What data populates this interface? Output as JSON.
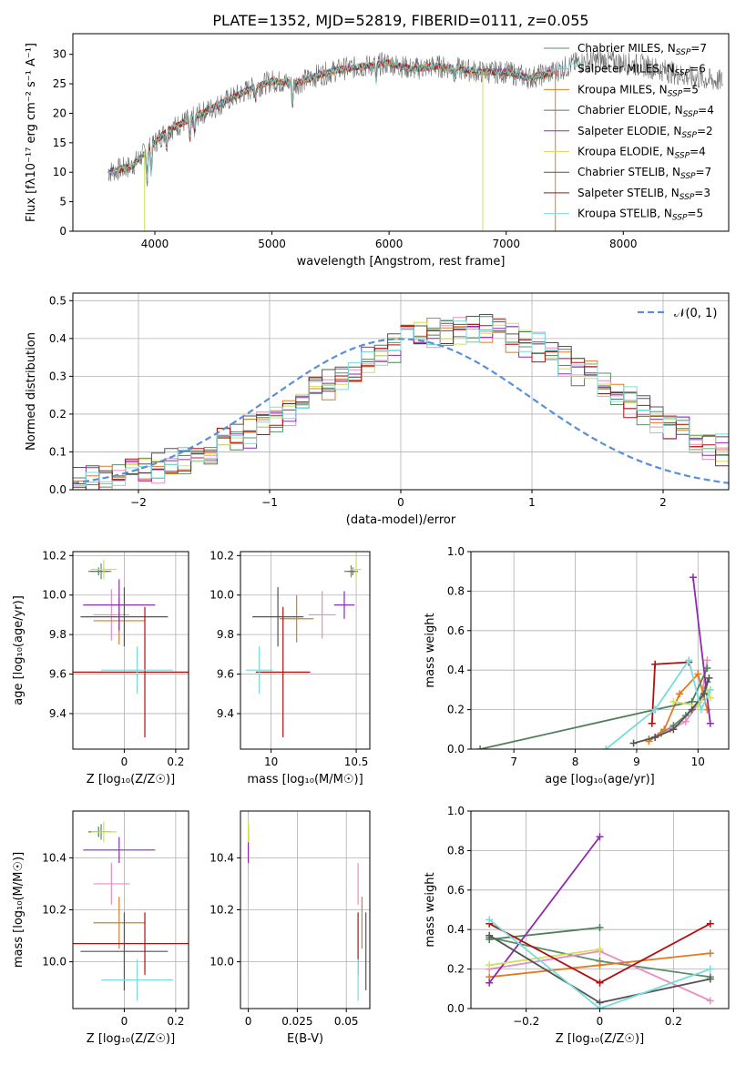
{
  "title": "PLATE=1352, MJD=52819, FIBERID=0111, z=0.055",
  "palette": [
    "#5b8f6a",
    "#e88dbf",
    "#e07b22",
    "#4f7f59",
    "#8e2bb0",
    "#cfe05a",
    "#555555",
    "#b01010",
    "#79dcdc"
  ],
  "labels": {
    "spec_x": "wavelength [Angstrom, rest frame]",
    "spec_y": "Flux [fλ10⁻¹⁷ erg cm⁻² s⁻¹ A⁻¹]",
    "res_x": "(data-model)/error",
    "res_y": "Normed distribution",
    "age_y": "age  [log₁₀(age/yr)]",
    "z_x": "Z [log₁₀(Z/Z☉)]",
    "mass_x": "mass [log₁₀(M/M☉)]",
    "mw_y": "mass weight",
    "age_x": "age  [log₁₀(age/yr)]",
    "mass_y": "mass [log₁₀(M/M☉)]",
    "ebv_x": "E(B-V)",
    "gauss_label": "𝒩(0, 1)"
  },
  "chart_data": [
    {
      "type": "line",
      "panel": "spectrum",
      "xlim": [
        3300,
        8900
      ],
      "ylim": [
        0,
        33.5
      ],
      "xticks": [
        4000,
        5000,
        6000,
        7000,
        8000
      ],
      "yticks": [
        0,
        5,
        10,
        15,
        20,
        25,
        30
      ],
      "legend_position": "top-right",
      "series": [
        {
          "name": "Chabrier MILES, N_SSP=7"
        },
        {
          "name": "Salpeter MILES, N_SSP=6"
        },
        {
          "name": "Kroupa MILES, N_SSP=5"
        },
        {
          "name": "Chabrier ELODIE, N_SSP=4"
        },
        {
          "name": "Salpeter ELODIE, N_SSP=2"
        },
        {
          "name": "Kroupa ELODIE, N_SSP=4"
        },
        {
          "name": "Chabrier STELIB, N_SSP=7"
        },
        {
          "name": "Salpeter STELIB, N_SSP=3"
        },
        {
          "name": "Kroupa STELIB, N_SSP=5"
        }
      ],
      "continuum": [
        [
          3600,
          10
        ],
        [
          3800,
          11
        ],
        [
          3950,
          14
        ],
        [
          4100,
          17
        ],
        [
          4250,
          18.5
        ],
        [
          4400,
          20
        ],
        [
          4600,
          22
        ],
        [
          4800,
          24
        ],
        [
          5000,
          25.5
        ],
        [
          5200,
          25
        ],
        [
          5400,
          26.5
        ],
        [
          5600,
          27.5
        ],
        [
          5800,
          28
        ],
        [
          6000,
          28.5
        ],
        [
          6200,
          27.5
        ],
        [
          6400,
          28
        ],
        [
          6600,
          27.5
        ],
        [
          6800,
          27
        ],
        [
          7000,
          27
        ],
        [
          7200,
          26
        ],
        [
          7400,
          27
        ],
        [
          7600,
          28.5
        ],
        [
          7800,
          29
        ],
        [
          8000,
          28.5
        ],
        [
          8200,
          28
        ],
        [
          8400,
          27
        ],
        [
          8600,
          26
        ],
        [
          8800,
          25.5
        ]
      ]
    },
    {
      "type": "bar",
      "panel": "residual-histogram",
      "xlim": [
        -2.5,
        2.5
      ],
      "ylim": [
        0,
        0.52
      ],
      "xticks": [
        -2,
        -1,
        0,
        1,
        2
      ],
      "yticks": [
        0.0,
        0.1,
        0.2,
        0.3,
        0.4,
        0.5
      ],
      "bin_width": 0.1,
      "density": [
        0.018,
        0.022,
        0.027,
        0.033,
        0.04,
        0.048,
        0.057,
        0.067,
        0.078,
        0.091,
        0.104,
        0.119,
        0.135,
        0.153,
        0.171,
        0.191,
        0.211,
        0.232,
        0.254,
        0.276,
        0.298,
        0.319,
        0.34,
        0.36,
        0.378,
        0.393,
        0.406,
        0.416,
        0.423,
        0.427,
        0.427,
        0.423,
        0.416,
        0.406,
        0.393,
        0.378,
        0.36,
        0.34,
        0.319,
        0.298,
        0.276,
        0.254,
        0.232,
        0.211,
        0.191,
        0.171,
        0.153,
        0.135,
        0.119,
        0.104
      ],
      "legend_position": "top-right"
    },
    {
      "type": "scatter",
      "panel": "age-vs-Z",
      "xlim": [
        -0.2,
        0.25
      ],
      "ylim": [
        9.22,
        10.22
      ],
      "xticks": [
        0.0,
        0.2
      ],
      "yticks": [
        9.4,
        9.6,
        9.8,
        10.0,
        10.2
      ],
      "points": [
        {
          "x": -0.09,
          "y": 10.12,
          "xerr": 0.04,
          "yerr": 0.04
        },
        {
          "x": -0.05,
          "y": 9.9,
          "xerr": 0.07,
          "yerr": 0.13
        },
        {
          "x": -0.02,
          "y": 9.87,
          "xerr": 0.1,
          "yerr": 0.12
        },
        {
          "x": -0.1,
          "y": 10.12,
          "xerr": 0.04,
          "yerr": 0.02
        },
        {
          "x": -0.02,
          "y": 9.95,
          "xerr": 0.14,
          "yerr": 0.13
        },
        {
          "x": -0.08,
          "y": 10.13,
          "xerr": 0.05,
          "yerr": 0.05
        },
        {
          "x": 0.0,
          "y": 9.89,
          "xerr": 0.17,
          "yerr": 0.15
        },
        {
          "x": 0.08,
          "y": 9.61,
          "xerr": 0.3,
          "yerr": 0.33
        },
        {
          "x": 0.05,
          "y": 9.62,
          "xerr": 0.14,
          "yerr": 0.12
        }
      ]
    },
    {
      "type": "scatter",
      "panel": "age-vs-mass",
      "xlim": [
        9.82,
        10.58
      ],
      "ylim": [
        9.22,
        10.22
      ],
      "xticks": [
        10.0,
        10.5
      ],
      "yticks": [
        9.4,
        9.6,
        9.8,
        10.0,
        10.2
      ],
      "points": [
        {
          "x": 10.47,
          "y": 10.12,
          "xerr": 0.04,
          "yerr": 0.03
        },
        {
          "x": 10.3,
          "y": 9.9,
          "xerr": 0.08,
          "yerr": 0.12
        },
        {
          "x": 10.15,
          "y": 9.88,
          "xerr": 0.1,
          "yerr": 0.12
        },
        {
          "x": 10.48,
          "y": 10.12,
          "xerr": 0.03,
          "yerr": 0.02
        },
        {
          "x": 10.43,
          "y": 9.95,
          "xerr": 0.06,
          "yerr": 0.07
        },
        {
          "x": 10.5,
          "y": 10.13,
          "xerr": 0.03,
          "yerr": 0.06
        },
        {
          "x": 10.04,
          "y": 9.89,
          "xerr": 0.15,
          "yerr": 0.15
        },
        {
          "x": 10.07,
          "y": 9.61,
          "xerr": 0.16,
          "yerr": 0.33
        },
        {
          "x": 9.93,
          "y": 9.62,
          "xerr": 0.08,
          "yerr": 0.12
        }
      ]
    },
    {
      "type": "line",
      "panel": "mass-weight-vs-age",
      "xlim": [
        6.3,
        10.5
      ],
      "ylim": [
        0,
        1.0
      ],
      "xticks": [
        7,
        8,
        9,
        10
      ],
      "yticks": [
        0.0,
        0.2,
        0.4,
        0.6,
        0.8,
        1.0
      ],
      "series": [
        {
          "x": [
            9.2,
            9.4,
            9.6,
            9.8,
            10.0,
            10.15
          ],
          "y": [
            0.05,
            0.08,
            0.12,
            0.17,
            0.24,
            0.34
          ]
        },
        {
          "x": [
            9.3,
            9.55,
            9.8,
            10.05,
            10.15
          ],
          "y": [
            0.06,
            0.1,
            0.14,
            0.25,
            0.45
          ]
        },
        {
          "x": [
            9.2,
            9.45,
            9.7,
            10.0,
            10.15
          ],
          "y": [
            0.04,
            0.1,
            0.28,
            0.38,
            0.2
          ]
        },
        {
          "x": [
            6.45,
            9.3,
            9.9,
            10.15
          ],
          "y": [
            0.0,
            0.2,
            0.24,
            0.41
          ]
        },
        {
          "x": [
            9.92,
            10.2
          ],
          "y": [
            0.87,
            0.13
          ]
        },
        {
          "x": [
            9.6,
            10.0,
            10.15,
            10.2
          ],
          "y": [
            0.24,
            0.22,
            0.3,
            0.26
          ]
        },
        {
          "x": [
            8.95,
            9.3,
            9.6,
            9.9,
            10.1,
            10.18
          ],
          "y": [
            0.03,
            0.06,
            0.1,
            0.2,
            0.28,
            0.36
          ]
        },
        {
          "x": [
            9.25,
            9.3,
            9.85
          ],
          "y": [
            0.13,
            0.43,
            0.44
          ]
        },
        {
          "x": [
            8.5,
            9.3,
            9.85,
            10.05,
            10.2
          ],
          "y": [
            0.0,
            0.2,
            0.45,
            0.2,
            0.3
          ]
        }
      ]
    },
    {
      "type": "scatter",
      "panel": "mass-vs-Z",
      "xlim": [
        -0.2,
        0.25
      ],
      "ylim": [
        9.82,
        10.58
      ],
      "xticks": [
        0.0,
        0.2
      ],
      "yticks": [
        10.0,
        10.2,
        10.4
      ],
      "points": [
        {
          "x": -0.09,
          "y": 10.5,
          "xerr": 0.04,
          "yerr": 0.03
        },
        {
          "x": -0.05,
          "y": 10.3,
          "xerr": 0.07,
          "yerr": 0.08
        },
        {
          "x": -0.02,
          "y": 10.15,
          "xerr": 0.1,
          "yerr": 0.1
        },
        {
          "x": -0.1,
          "y": 10.5,
          "xerr": 0.04,
          "yerr": 0.02
        },
        {
          "x": -0.02,
          "y": 10.43,
          "xerr": 0.14,
          "yerr": 0.05
        },
        {
          "x": -0.08,
          "y": 10.5,
          "xerr": 0.05,
          "yerr": 0.04
        },
        {
          "x": 0.0,
          "y": 10.04,
          "xerr": 0.17,
          "yerr": 0.15
        },
        {
          "x": 0.08,
          "y": 10.07,
          "xerr": 0.3,
          "yerr": 0.12
        },
        {
          "x": 0.05,
          "y": 9.93,
          "xerr": 0.14,
          "yerr": 0.08
        }
      ]
    },
    {
      "type": "scatter",
      "panel": "mass-vs-EBV",
      "xlim": [
        -0.004,
        0.062
      ],
      "ylim": [
        9.82,
        10.58
      ],
      "xticks": [
        0.0,
        0.025,
        0.05
      ],
      "yticks": [
        10.0,
        10.2,
        10.4
      ],
      "points": [
        {
          "x": 0.0,
          "y": 10.5,
          "yerr": 0.03
        },
        {
          "x": 0.056,
          "y": 10.3,
          "yerr": 0.08
        },
        {
          "x": 0.058,
          "y": 10.15,
          "yerr": 0.1
        },
        {
          "x": 0.0,
          "y": 10.5,
          "yerr": 0.02
        },
        {
          "x": 0.0,
          "y": 10.43,
          "yerr": 0.05
        },
        {
          "x": 0.0,
          "y": 10.5,
          "yerr": 0.04
        },
        {
          "x": 0.06,
          "y": 10.04,
          "yerr": 0.15
        },
        {
          "x": 0.056,
          "y": 10.07,
          "yerr": 0.12
        },
        {
          "x": 0.056,
          "y": 9.93,
          "yerr": 0.08
        }
      ]
    },
    {
      "type": "line",
      "panel": "mass-weight-vs-Z",
      "xlim": [
        -0.35,
        0.35
      ],
      "ylim": [
        0,
        1.0
      ],
      "xticks": [
        -0.2,
        0.0,
        0.2
      ],
      "yticks": [
        0.0,
        0.2,
        0.4,
        0.6,
        0.8,
        1.0
      ],
      "series": [
        {
          "x": [
            -0.3,
            0.0,
            0.3
          ],
          "y": [
            0.36,
            0.24,
            0.16
          ]
        },
        {
          "x": [
            -0.3,
            0.0,
            0.3
          ],
          "y": [
            0.2,
            0.29,
            0.04
          ]
        },
        {
          "x": [
            -0.3,
            0.0,
            0.3
          ],
          "y": [
            0.16,
            0.22,
            0.28
          ]
        },
        {
          "x": [
            -0.3,
            0.0
          ],
          "y": [
            0.35,
            0.41
          ]
        },
        {
          "x": [
            -0.3,
            0.0
          ],
          "y": [
            0.13,
            0.87
          ]
        },
        {
          "x": [
            -0.3,
            0.0
          ],
          "y": [
            0.22,
            0.3
          ]
        },
        {
          "x": [
            -0.3,
            0.0,
            0.3
          ],
          "y": [
            0.37,
            0.03,
            0.15
          ]
        },
        {
          "x": [
            -0.3,
            0.0,
            0.3
          ],
          "y": [
            0.43,
            0.13,
            0.43
          ]
        },
        {
          "x": [
            -0.3,
            0.0,
            0.3
          ],
          "y": [
            0.45,
            0.0,
            0.2
          ]
        }
      ]
    }
  ]
}
